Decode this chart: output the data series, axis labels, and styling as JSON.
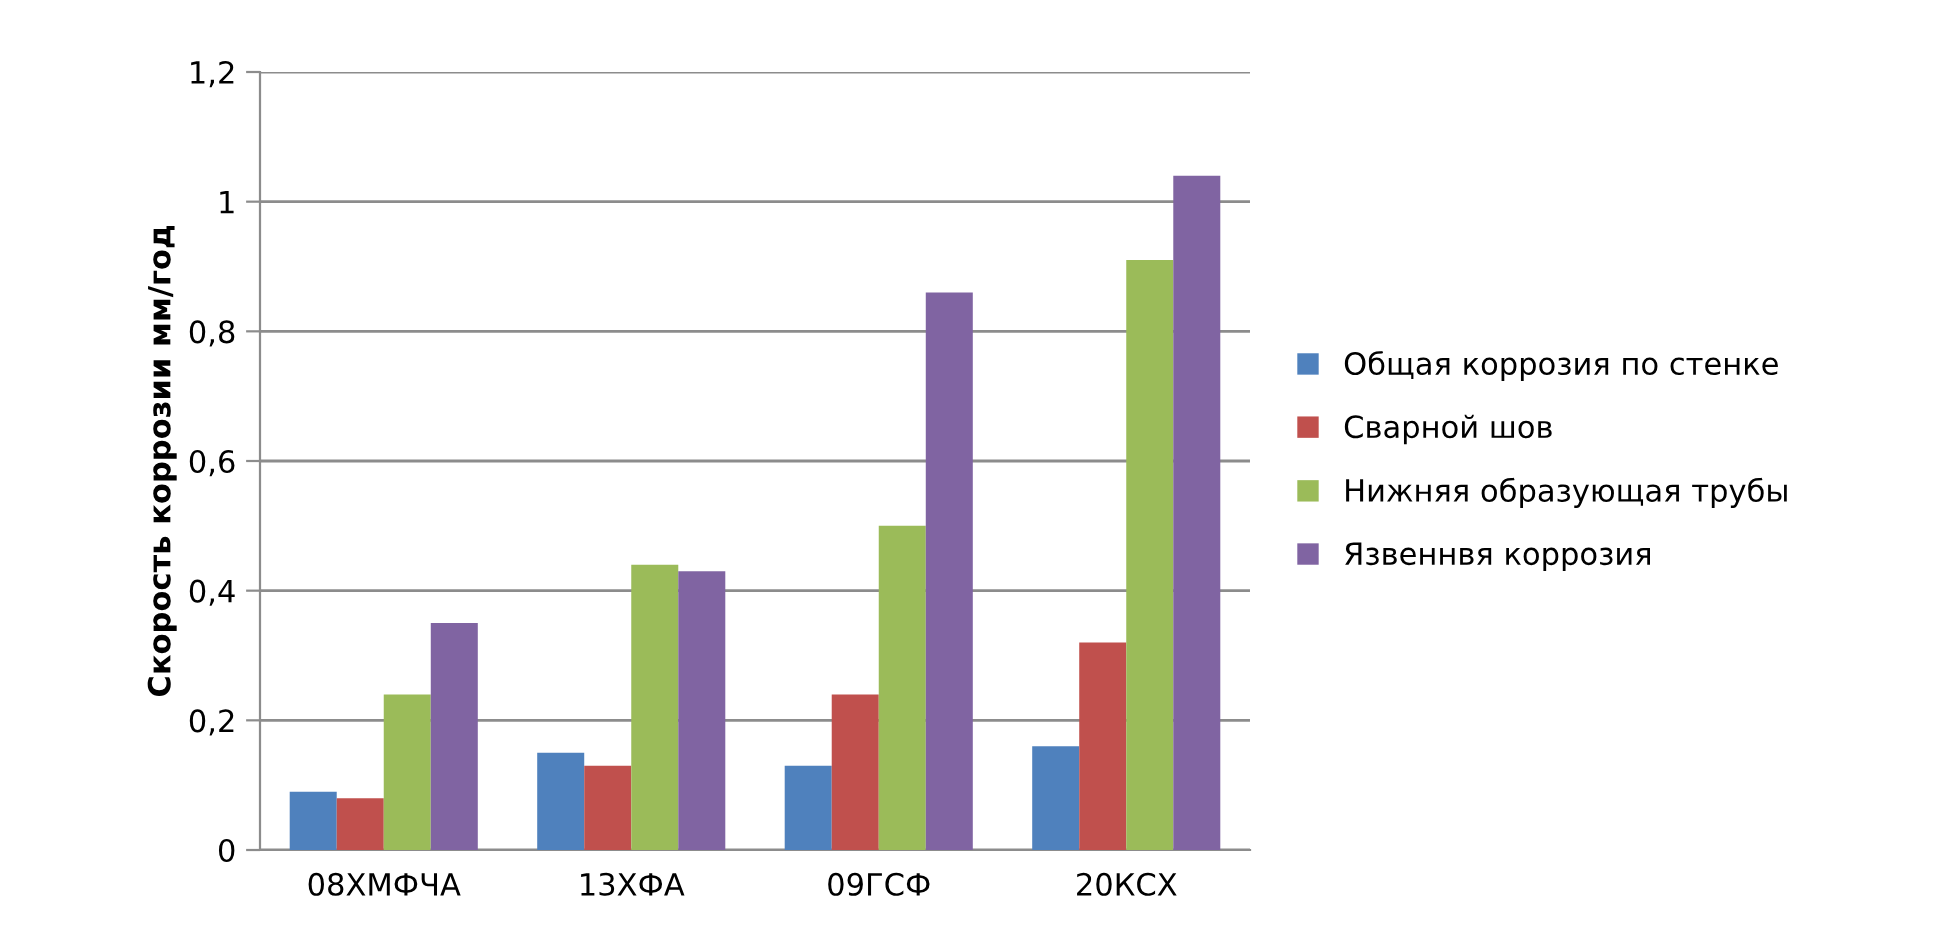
{
  "chart_data": {
    "type": "bar",
    "ylabel": "Скорость коррозии мм/год",
    "categories": [
      "08ХМФЧА",
      "13ХФА",
      "09ГСФ",
      "20КСХ"
    ],
    "series": [
      {
        "name": "Общая коррозия по стенке",
        "color": "#4f81bd",
        "values": [
          0.09,
          0.15,
          0.13,
          0.16
        ]
      },
      {
        "name": "Сварной шов",
        "color": "#c0504d",
        "values": [
          0.08,
          0.13,
          0.24,
          0.32
        ]
      },
      {
        "name": "Нижняя образующая трубы",
        "color": "#9bbb59",
        "values": [
          0.24,
          0.44,
          0.5,
          0.91
        ]
      },
      {
        "name": "Язвеннвя коррозия",
        "color": "#8064a2",
        "values": [
          0.35,
          0.43,
          0.86,
          1.04
        ]
      }
    ],
    "ylim": [
      0,
      1.2
    ],
    "yticks": [
      0,
      {
        "value": 0.2,
        "label": "0,2"
      },
      {
        "value": 0.4,
        "label": "0,4"
      },
      {
        "value": 0.6,
        "label": "0,6"
      },
      {
        "value": 0.8,
        "label": "0,8"
      },
      1,
      {
        "value": 1.2,
        "label": "1,2"
      }
    ],
    "grid": "y",
    "legend": "right"
  }
}
